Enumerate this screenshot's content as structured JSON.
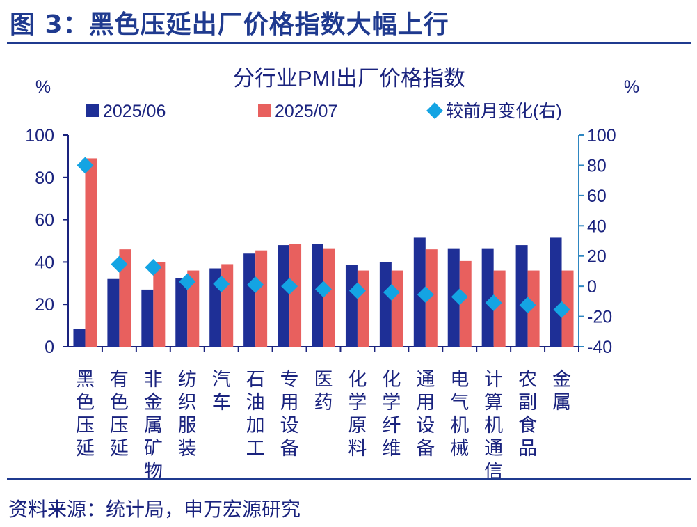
{
  "figure": {
    "title": "图 3：黑色压延出厂价格指数大幅上行",
    "source": "资料来源：统计局，申万宏源研究"
  },
  "colors": {
    "series_jun": "#1e2f96",
    "series_jul": "#e8605e",
    "series_change": "#14a4e3",
    "axis_left": "#1a237e",
    "axis_right": "#2e86c1",
    "rule": "#1f3a8f"
  },
  "chart_data": {
    "type": "bar",
    "title": "分行业PMI出厂价格指数",
    "ylabel_left": "%",
    "ylabel_right": "%",
    "ylim_left": [
      0,
      100
    ],
    "ylim_right": [
      -40,
      100
    ],
    "yticks_left": [
      "0",
      "20",
      "40",
      "60",
      "80",
      "100"
    ],
    "yticks_right": [
      "-40",
      "-20",
      "0",
      "20",
      "40",
      "60",
      "80",
      "100"
    ],
    "categories": [
      "黑色压延",
      "有色压延",
      "非金属矿物",
      "纺织服装",
      "汽车",
      "石油加工",
      "专用设备",
      "医药",
      "化学原料",
      "化学纤维",
      "通用设备",
      "电气机械",
      "计算机通信",
      "农副食品",
      "金属"
    ],
    "series": [
      {
        "name": "2025/06",
        "type": "bar",
        "axis": "left",
        "values": [
          8.5,
          32.0,
          27.0,
          32.5,
          37.0,
          44.0,
          48.0,
          48.5,
          38.5,
          40.0,
          51.5,
          46.5,
          46.5,
          48.0,
          51.5
        ]
      },
      {
        "name": "2025/07",
        "type": "bar",
        "axis": "left",
        "values": [
          89.0,
          46.0,
          40.0,
          36.0,
          39.0,
          45.5,
          48.5,
          46.5,
          36.0,
          36.0,
          46.0,
          40.5,
          36.0,
          36.0,
          36.0
        ]
      },
      {
        "name": "较前月变化(右)",
        "type": "scatter",
        "axis": "right",
        "values": [
          80.0,
          14.5,
          12.5,
          3.0,
          1.5,
          1.0,
          0.0,
          -2.0,
          -3.0,
          -4.0,
          -5.5,
          -7.0,
          -11.0,
          -12.5,
          -15.5
        ]
      }
    ],
    "legend": "top"
  }
}
